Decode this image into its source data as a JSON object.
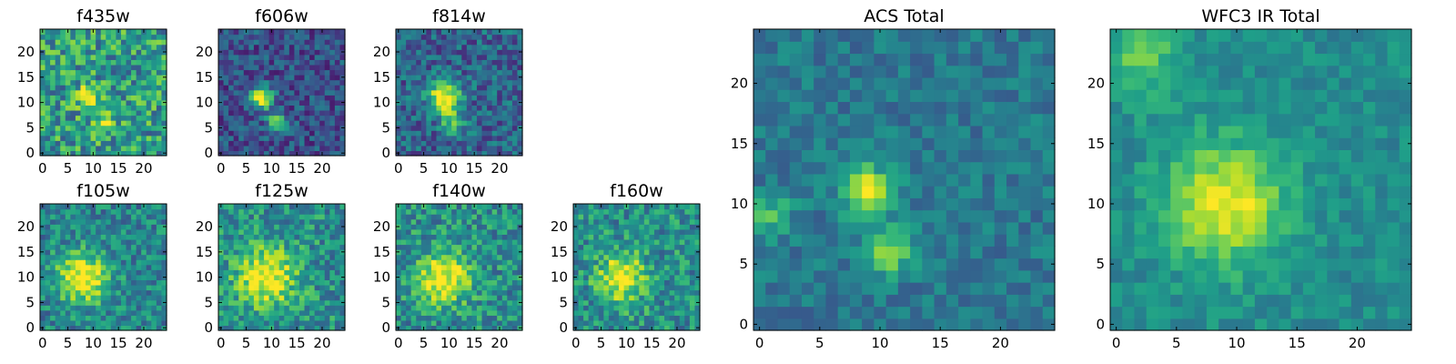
{
  "chart_data": [
    {
      "type": "heatmap",
      "title": "f435w",
      "xticks": [
        "0",
        "5",
        "10",
        "15",
        "20"
      ],
      "yticks": [
        "0",
        "5",
        "10",
        "15",
        "20"
      ],
      "xlim": [
        0,
        25
      ],
      "ylim": [
        0,
        25
      ],
      "colormap": "viridis",
      "sources": [
        {
          "x": 9,
          "y": 11,
          "amp": 0.55,
          "sigma": 1.4
        },
        {
          "x": 12,
          "y": 6,
          "amp": 0.45,
          "sigma": 1.3
        }
      ],
      "base": 0.55,
      "noise": 0.28,
      "seed": 11
    },
    {
      "type": "heatmap",
      "title": "f606w",
      "xticks": [
        "0",
        "5",
        "10",
        "15",
        "20"
      ],
      "yticks": [
        "0",
        "5",
        "10",
        "15",
        "20"
      ],
      "xlim": [
        0,
        25
      ],
      "ylim": [
        0,
        25
      ],
      "colormap": "viridis",
      "sources": [
        {
          "x": 8,
          "y": 11,
          "amp": 0.85,
          "sigma": 1.5
        },
        {
          "x": 11,
          "y": 6,
          "amp": 0.6,
          "sigma": 1.3
        }
      ],
      "base": 0.25,
      "noise": 0.18,
      "seed": 23
    },
    {
      "type": "heatmap",
      "title": "f814w",
      "xticks": [
        "0",
        "5",
        "10",
        "15",
        "20"
      ],
      "yticks": [
        "0",
        "5",
        "10",
        "15",
        "20"
      ],
      "xlim": [
        0,
        25
      ],
      "ylim": [
        0,
        25
      ],
      "colormap": "viridis",
      "sources": [
        {
          "x": 9,
          "y": 11,
          "amp": 0.75,
          "sigma": 2.2
        },
        {
          "x": 11,
          "y": 6,
          "amp": 0.45,
          "sigma": 1.5
        }
      ],
      "base": 0.32,
      "noise": 0.2,
      "seed": 37
    },
    {
      "type": "heatmap",
      "title": "f105w",
      "xticks": [
        "0",
        "5",
        "10",
        "15",
        "20"
      ],
      "yticks": [
        "0",
        "5",
        "10",
        "15",
        "20"
      ],
      "xlim": [
        0,
        25
      ],
      "ylim": [
        0,
        25
      ],
      "colormap": "viridis",
      "sources": [
        {
          "x": 8,
          "y": 10,
          "amp": 0.6,
          "sigma": 3.5
        }
      ],
      "base": 0.45,
      "noise": 0.2,
      "seed": 41
    },
    {
      "type": "heatmap",
      "title": "f125w",
      "xticks": [
        "0",
        "5",
        "10",
        "15",
        "20"
      ],
      "yticks": [
        "0",
        "5",
        "10",
        "15",
        "20"
      ],
      "xlim": [
        0,
        25
      ],
      "ylim": [
        0,
        25
      ],
      "colormap": "viridis",
      "sources": [
        {
          "x": 9,
          "y": 10,
          "amp": 0.55,
          "sigma": 4.0
        }
      ],
      "base": 0.5,
      "noise": 0.22,
      "seed": 53
    },
    {
      "type": "heatmap",
      "title": "f140w",
      "xticks": [
        "0",
        "5",
        "10",
        "15",
        "20"
      ],
      "yticks": [
        "0",
        "5",
        "10",
        "15",
        "20"
      ],
      "xlim": [
        0,
        25
      ],
      "ylim": [
        0,
        25
      ],
      "colormap": "viridis",
      "sources": [
        {
          "x": 9,
          "y": 10,
          "amp": 0.55,
          "sigma": 3.5
        }
      ],
      "base": 0.5,
      "noise": 0.22,
      "seed": 67
    },
    {
      "type": "heatmap",
      "title": "f160w",
      "xticks": [
        "0",
        "5",
        "10",
        "15",
        "20"
      ],
      "yticks": [
        "0",
        "5",
        "10",
        "15",
        "20"
      ],
      "xlim": [
        0,
        25
      ],
      "ylim": [
        0,
        25
      ],
      "colormap": "viridis",
      "sources": [
        {
          "x": 9,
          "y": 10,
          "amp": 0.55,
          "sigma": 3.2
        }
      ],
      "base": 0.5,
      "noise": 0.22,
      "seed": 79
    },
    {
      "type": "heatmap",
      "title": "ACS Total",
      "xticks": [
        "0",
        "5",
        "10",
        "15",
        "20"
      ],
      "yticks": [
        "0",
        "5",
        "10",
        "15",
        "20"
      ],
      "xlim": [
        0,
        25
      ],
      "ylim": [
        0,
        25
      ],
      "colormap": "viridis",
      "sources": [
        {
          "x": 9,
          "y": 11,
          "amp": 0.6,
          "sigma": 1.5
        },
        {
          "x": 11,
          "y": 6,
          "amp": 0.45,
          "sigma": 1.2
        },
        {
          "x": 1,
          "y": 9,
          "amp": 0.3,
          "sigma": 1.2
        }
      ],
      "base": 0.4,
      "noise": 0.12,
      "seed": 97
    },
    {
      "type": "heatmap",
      "title": "WFC3 IR Total",
      "xticks": [
        "0",
        "5",
        "10",
        "15",
        "20"
      ],
      "yticks": [
        "0",
        "5",
        "10",
        "15",
        "20"
      ],
      "xlim": [
        0,
        25
      ],
      "ylim": [
        0,
        25
      ],
      "colormap": "viridis",
      "sources": [
        {
          "x": 9,
          "y": 10,
          "amp": 0.5,
          "sigma": 3.5
        },
        {
          "x": 2,
          "y": 22,
          "amp": 0.25,
          "sigma": 2.5
        }
      ],
      "base": 0.48,
      "noise": 0.1,
      "seed": 113
    }
  ]
}
